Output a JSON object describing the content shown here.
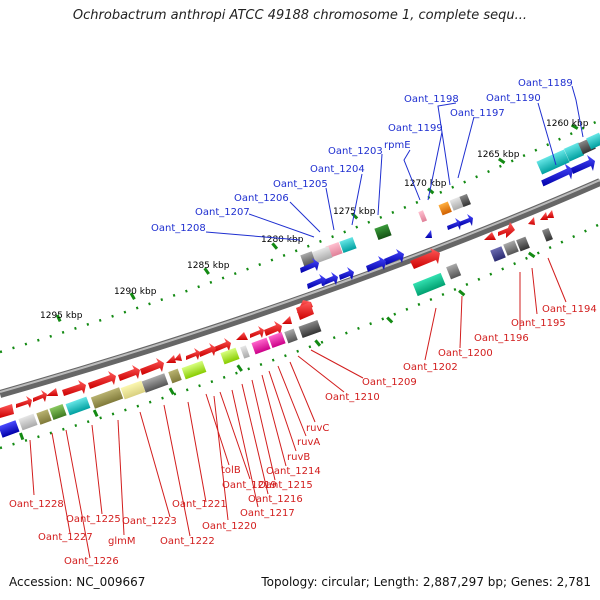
{
  "title": "Ochrobactrum anthropi ATCC 49188 chromosome 1, complete sequ...",
  "kbp_ticks": [
    "1260 kbp",
    "1265 kbp",
    "1270 kbp",
    "1275 kbp",
    "1280 kbp",
    "1285 kbp",
    "1290 kbp",
    "1295 kbp"
  ],
  "top_labels": [
    "Oant_1189",
    "Oant_1190",
    "Oant_1197",
    "Oant_1198",
    "Oant_1199",
    "rpmE",
    "Oant_1203",
    "Oant_1204",
    "Oant_1205",
    "Oant_1206",
    "Oant_1207",
    "Oant_1208"
  ],
  "bottom_labels": [
    "Oant_1194",
    "Oant_1195",
    "Oant_1196",
    "Oant_1200",
    "Oant_1202",
    "Oant_1209",
    "Oant_1210",
    "ruvC",
    "ruvA",
    "ruvB",
    "Oant_1214",
    "Oant_1215",
    "Oant_1216",
    "Oant_1217",
    "tolB",
    "Oant_1219",
    "Oant_1220",
    "Oant_1221",
    "Oant_1222",
    "Oant_1223",
    "glmM",
    "Oant_1225",
    "Oant_1226",
    "Oant_1227",
    "Oant_1228"
  ],
  "footer": {
    "accession": "Accession: NC_009667",
    "summary": "Topology: circular; Length: 2,887,297 bp; Genes: 2,781"
  },
  "colors": {
    "forward_cds": "#ff0000",
    "reverse_cds": "#0000ee",
    "backbone": "#888888",
    "tick": "#138a13",
    "top_leader": "#1f2fd0",
    "bottom_leader": "#d21d1d"
  }
}
